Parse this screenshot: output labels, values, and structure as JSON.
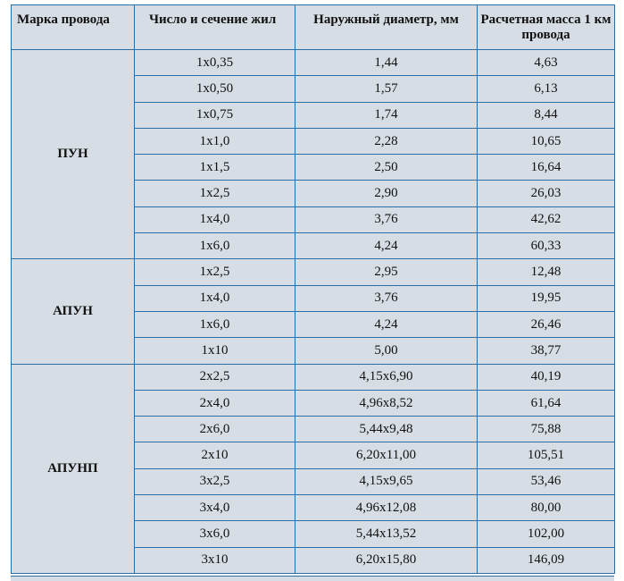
{
  "headers": [
    "Марка провода",
    "Число и сечение жил",
    "Наружный диаметр, мм",
    "Расчетная масса 1 км провода"
  ],
  "groups": [
    {
      "grade": "ПУН",
      "rows": [
        {
          "cores": "1x0,35",
          "diameter": "1,44",
          "mass": "4,63"
        },
        {
          "cores": "1x0,50",
          "diameter": "1,57",
          "mass": "6,13"
        },
        {
          "cores": "1x0,75",
          "diameter": "1,74",
          "mass": "8,44"
        },
        {
          "cores": "1x1,0",
          "diameter": "2,28",
          "mass": "10,65"
        },
        {
          "cores": "1x1,5",
          "diameter": "2,50",
          "mass": "16,64"
        },
        {
          "cores": "1x2,5",
          "diameter": "2,90",
          "mass": "26,03"
        },
        {
          "cores": "1x4,0",
          "diameter": "3,76",
          "mass": "42,62"
        },
        {
          "cores": "1x6,0",
          "diameter": "4,24",
          "mass": "60,33"
        }
      ]
    },
    {
      "grade": "АПУН",
      "rows": [
        {
          "cores": "1x2,5",
          "diameter": "2,95",
          "mass": "12,48"
        },
        {
          "cores": "1x4,0",
          "diameter": "3,76",
          "mass": "19,95"
        },
        {
          "cores": "1x6,0",
          "diameter": "4,24",
          "mass": "26,46"
        },
        {
          "cores": "1x10",
          "diameter": "5,00",
          "mass": "38,77"
        }
      ]
    },
    {
      "grade": "АПУНП",
      "rows": [
        {
          "cores": "2x2,5",
          "diameter": "4,15x6,90",
          "mass": "40,19"
        },
        {
          "cores": "2x4,0",
          "diameter": "4,96x8,52",
          "mass": "61,64"
        },
        {
          "cores": "2x6,0",
          "diameter": "5,44x9,48",
          "mass": "75,88"
        },
        {
          "cores": "2x10",
          "diameter": "6,20x11,00",
          "mass": "105,51"
        },
        {
          "cores": "3x2,5",
          "diameter": "4,15x9,65",
          "mass": "53,46"
        },
        {
          "cores": "3x4,0",
          "diameter": "4,96x12,08",
          "mass": "80,00"
        },
        {
          "cores": "3x6,0",
          "diameter": "5,44x13,52",
          "mass": "102,00"
        },
        {
          "cores": "3x10",
          "diameter": "6,20x15,80",
          "mass": "146,09"
        }
      ]
    }
  ]
}
